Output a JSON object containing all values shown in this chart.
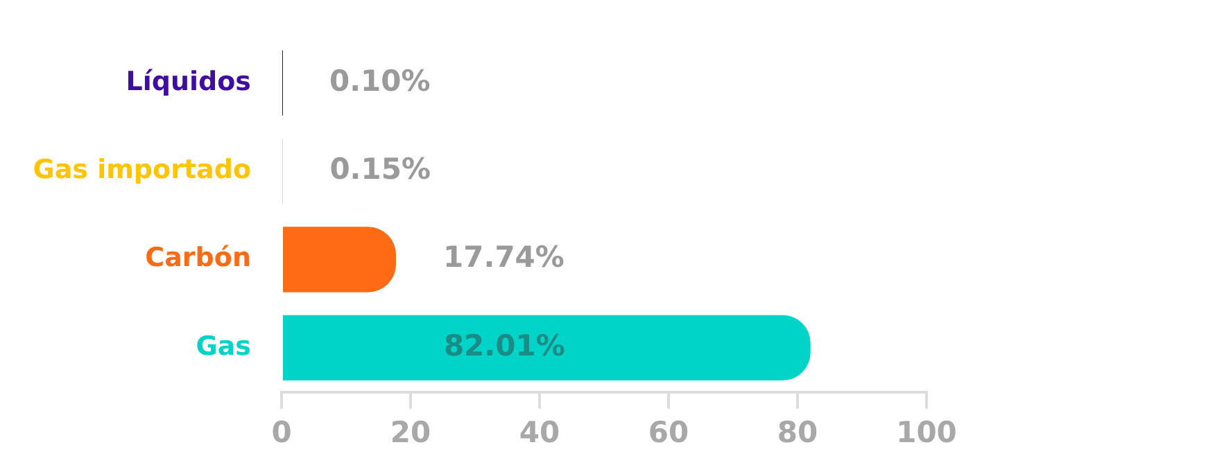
{
  "chart_data": {
    "type": "bar",
    "orientation": "horizontal",
    "categories": [
      "Líquidos",
      "Gas importado",
      "Carbón",
      "Gas"
    ],
    "values": [
      0.1,
      0.15,
      17.74,
      82.01
    ],
    "colors": [
      "#3f0ea0",
      "#ffc403",
      "#ff6b14",
      "#00d4c8"
    ],
    "value_labels": [
      "0.10%",
      "0.15%",
      "17.74%",
      "82.01%"
    ],
    "xlim": [
      0,
      100
    ],
    "xticks": [
      0,
      20,
      40,
      60,
      80,
      100
    ],
    "grid": false,
    "legend": false
  }
}
